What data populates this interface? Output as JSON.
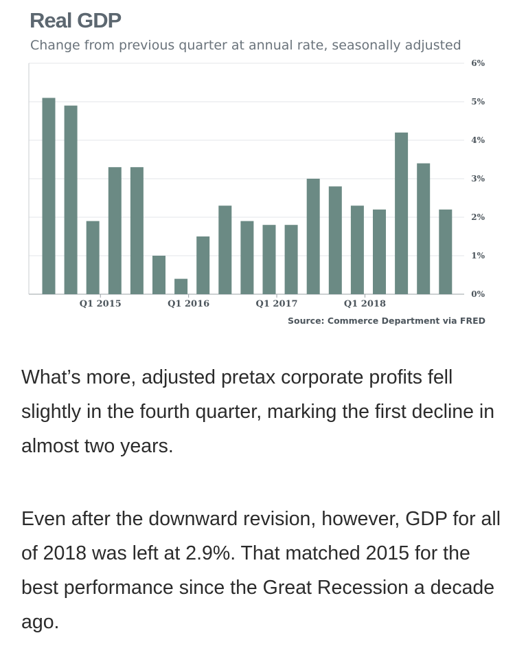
{
  "chart_data": {
    "type": "bar",
    "title": "Real GDP",
    "subtitle": "Change from previous quarter at annual rate, seasonally adjusted",
    "source": "Source: Commerce Department via FRED",
    "ylim": [
      0,
      6
    ],
    "y_ticks": [
      "0%",
      "1%",
      "2%",
      "3%",
      "4%",
      "5%",
      "6%"
    ],
    "y_axis_position": "right",
    "grid": "horizontal",
    "x_tick_labels": [
      {
        "label": "Q1 2015",
        "index": 2
      },
      {
        "label": "Q1 2016",
        "index": 6
      },
      {
        "label": "Q1 2017",
        "index": 10
      },
      {
        "label": "Q1 2018",
        "index": 14
      }
    ],
    "values": [
      5.1,
      4.9,
      1.9,
      3.3,
      3.3,
      1.0,
      0.4,
      1.5,
      2.3,
      1.9,
      1.8,
      1.8,
      3.0,
      2.8,
      2.3,
      2.2,
      4.2,
      3.4,
      2.2
    ],
    "bar_color": "#6b8a84"
  },
  "article": {
    "paragraphs": [
      "What’s more, adjusted pretax corporate profits fell slightly in the fourth quarter, marking the first decline in almost two years.",
      "Even after the downward revision, however, GDP for all of 2018 was left at 2.9%. That matched 2015 for the best performance since the Great Recession a decade ago."
    ]
  }
}
